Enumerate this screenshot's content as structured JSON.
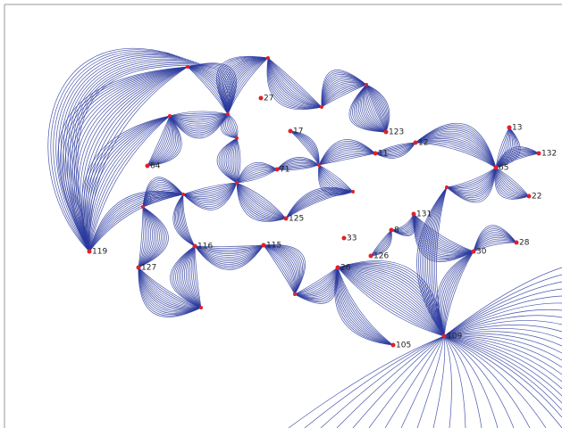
{
  "nodes": [
    {
      "label": "119"
    },
    {
      "label": "127"
    },
    {
      "label": "116"
    },
    {
      "label": "115"
    },
    {
      "label": "125"
    },
    {
      "label": "71"
    },
    {
      "label": "17"
    },
    {
      "label": "11"
    },
    {
      "label": "12"
    },
    {
      "label": "123"
    },
    {
      "label": "33"
    },
    {
      "label": "126"
    },
    {
      "label": "26"
    },
    {
      "label": "105"
    },
    {
      "label": "109"
    },
    {
      "label": "64"
    },
    {
      "label": "27"
    },
    {
      "label": "65"
    },
    {
      "label": "132"
    },
    {
      "label": "30"
    },
    {
      "label": "28"
    },
    {
      "label": "131"
    },
    {
      "label": "22"
    },
    {
      "label": "13"
    },
    {
      "label": "8"
    }
  ]
}
